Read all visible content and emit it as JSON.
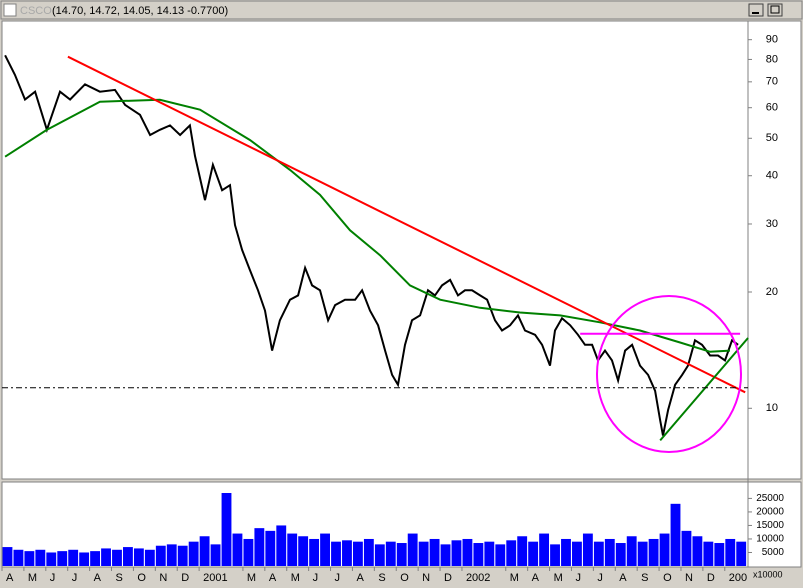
{
  "chart_data": [
    {
      "type": "line",
      "title": "CSCO",
      "subtitle": "(14.70, 14.72, 14.05, 14.13 -0.7700)",
      "y_scale": "log",
      "xlim": [
        0,
        34.06
      ],
      "ylim": [
        6.6,
        100
      ],
      "yticks": [
        10,
        20,
        30,
        40,
        50,
        60,
        70,
        80,
        90
      ],
      "series": [
        {
          "color": "#000000",
          "style": "solid",
          "x": [
            0.14,
            0.59,
            1.05,
            1.51,
            2.05,
            2.65,
            3.11,
            3.79,
            4.47,
            5.16,
            5.62,
            6.3,
            6.76,
            7.21,
            7.67,
            8.13,
            8.58,
            8.81,
            9.27,
            9.63,
            10.05,
            10.41,
            10.64,
            10.96,
            11.32,
            11.69,
            12.01,
            12.33,
            12.69,
            13.15,
            13.52,
            13.84,
            14.16,
            14.52,
            14.89,
            15.21,
            15.66,
            16.12,
            16.44,
            16.8,
            17.17,
            17.49,
            17.81,
            18.08,
            18.4,
            18.72,
            19.09,
            19.45,
            19.77,
            20.09,
            20.46,
            20.82,
            21.14,
            21.46,
            21.83,
            22.15,
            22.51,
            22.83,
            23.2,
            23.56,
            23.88,
            24.34,
            24.66,
            25.02,
            25.25,
            25.57,
            25.94,
            26.3,
            26.62,
            26.94,
            27.21,
            27.53,
            27.85,
            28.13,
            28.45,
            28.77,
            29.13,
            29.5,
            29.82,
            30.05,
            30.18,
            30.41,
            30.73,
            31.05,
            31.32,
            31.64,
            31.96,
            32.33,
            32.69,
            33.01,
            33.33,
            33.61
          ],
          "values": [
            82,
            73,
            63,
            66,
            52.6,
            66,
            63,
            69,
            66,
            66.7,
            61,
            57.5,
            51,
            52.6,
            54,
            51,
            54,
            45,
            34.6,
            42.7,
            36.7,
            37.8,
            29.8,
            25.7,
            22.8,
            20.2,
            17.9,
            14.1,
            16.9,
            19.1,
            19.6,
            23.1,
            20.8,
            20.2,
            16.9,
            18.5,
            19.1,
            19.1,
            20.2,
            17.9,
            16.4,
            14.1,
            12.2,
            11.5,
            14.6,
            16.9,
            17.4,
            20.2,
            19.6,
            20.8,
            21.5,
            19.6,
            20.2,
            20.2,
            19.6,
            19.1,
            16.9,
            15.9,
            16.4,
            17.4,
            15.9,
            15.5,
            14.6,
            12.9,
            15.9,
            17.1,
            16.4,
            15.5,
            14.6,
            14.6,
            13.3,
            14.1,
            13.3,
            11.8,
            14.1,
            14.6,
            12.9,
            12.2,
            11.1,
            9.3,
            8.5,
            9.9,
            11.5,
            12.2,
            12.9,
            15.0,
            14.6,
            13.7,
            13.7,
            13.3,
            15.0,
            14.6
          ]
        },
        {
          "color": "#008000",
          "style": "solid",
          "x": [
            0.14,
            2.05,
            4.47,
            7.21,
            9.04,
            11.32,
            13.15,
            14.52,
            15.89,
            17.26,
            18.63,
            20.0,
            21.83,
            23.65,
            25.48,
            27.3,
            29.13,
            30.96,
            32.33,
            33.24
          ],
          "values": [
            44.8,
            52.6,
            62.2,
            62.9,
            59.3,
            49.5,
            41.4,
            35.7,
            28.9,
            24.9,
            20.8,
            19.1,
            18.2,
            17.7,
            17.4,
            16.7,
            15.9,
            14.8,
            14.0,
            14.1
          ]
        },
        {
          "color": "#ff0000",
          "style": "solid",
          "x": [
            3.01,
            33.93
          ],
          "values": [
            81.3,
            11.0
          ]
        },
        {
          "color": "#008000",
          "style": "solid",
          "x": [
            30.05,
            34.06
          ],
          "values": [
            8.26,
            15.2
          ]
        },
        {
          "color": "#000000",
          "style": "dashed",
          "x": [
            0,
            34.06
          ],
          "values": [
            11.3,
            11.3
          ]
        },
        {
          "color": "#ff00ff",
          "style": "solid",
          "x": [
            26.4,
            33.7
          ],
          "values": [
            15.6,
            15.6
          ]
        }
      ]
    },
    {
      "type": "bar",
      "color": "#0000ff",
      "unit_label": "x10000",
      "xlim": [
        0,
        34.06
      ],
      "ylim": [
        0,
        30700
      ],
      "yticks": [
        5000,
        10000,
        15000,
        20000,
        25000
      ],
      "x": [
        0.25,
        0.75,
        1.25,
        1.75,
        2.25,
        2.75,
        3.25,
        3.75,
        4.25,
        4.75,
        5.25,
        5.75,
        6.25,
        6.75,
        7.25,
        7.75,
        8.25,
        8.75,
        9.25,
        9.75,
        10.25,
        10.75,
        11.25,
        11.75,
        12.25,
        12.75,
        13.25,
        13.75,
        14.25,
        14.75,
        15.25,
        15.75,
        16.25,
        16.75,
        17.25,
        17.75,
        18.25,
        18.75,
        19.25,
        19.75,
        20.25,
        20.75,
        21.25,
        21.75,
        22.25,
        22.75,
        23.25,
        23.75,
        24.25,
        24.75,
        25.25,
        25.75,
        26.25,
        26.75,
        27.25,
        27.75,
        28.25,
        28.75,
        29.25,
        29.75,
        30.25,
        30.75,
        31.25,
        31.75,
        32.25,
        32.75,
        33.25,
        33.75
      ],
      "values": [
        7000,
        6000,
        5500,
        6000,
        5000,
        5500,
        6000,
        5000,
        5500,
        6500,
        6000,
        7000,
        6500,
        6000,
        7500,
        8000,
        7500,
        9000,
        11000,
        8000,
        27000,
        12000,
        10000,
        14000,
        13000,
        15000,
        12000,
        11000,
        10000,
        12000,
        9000,
        9500,
        9000,
        10000,
        8000,
        9000,
        8500,
        12000,
        9000,
        10000,
        8000,
        9500,
        10000,
        8500,
        9000,
        8000,
        9500,
        11000,
        9000,
        12000,
        8000,
        10000,
        9000,
        12000,
        9000,
        10000,
        8500,
        11000,
        9000,
        10000,
        12000,
        23000,
        13000,
        11000,
        9000,
        8500,
        10000,
        9000
      ],
      "xticks": [
        {
          "value": 0,
          "label": "A"
        },
        {
          "value": 1,
          "label": "M"
        },
        {
          "value": 2,
          "label": "J"
        },
        {
          "value": 3,
          "label": "J"
        },
        {
          "value": 4,
          "label": "A"
        },
        {
          "value": 5,
          "label": "S"
        },
        {
          "value": 6,
          "label": "O"
        },
        {
          "value": 7,
          "label": "N"
        },
        {
          "value": 8,
          "label": "D"
        },
        {
          "value": 9,
          "label": "2001"
        },
        {
          "value": 11,
          "label": "M"
        },
        {
          "value": 12,
          "label": "A"
        },
        {
          "value": 13,
          "label": "M"
        },
        {
          "value": 14,
          "label": "J"
        },
        {
          "value": 15,
          "label": "J"
        },
        {
          "value": 16,
          "label": "A"
        },
        {
          "value": 17,
          "label": "S"
        },
        {
          "value": 18,
          "label": "O"
        },
        {
          "value": 19,
          "label": "N"
        },
        {
          "value": 20,
          "label": "D"
        },
        {
          "value": 21,
          "label": "2002"
        },
        {
          "value": 23,
          "label": "M"
        },
        {
          "value": 24,
          "label": "A"
        },
        {
          "value": 25,
          "label": "M"
        },
        {
          "value": 26,
          "label": "J"
        },
        {
          "value": 27,
          "label": "J"
        },
        {
          "value": 28,
          "label": "A"
        },
        {
          "value": 29,
          "label": "S"
        },
        {
          "value": 30,
          "label": "O"
        },
        {
          "value": 31,
          "label": "N"
        },
        {
          "value": 32,
          "label": "D"
        },
        {
          "value": 33,
          "label": "200"
        }
      ]
    }
  ]
}
